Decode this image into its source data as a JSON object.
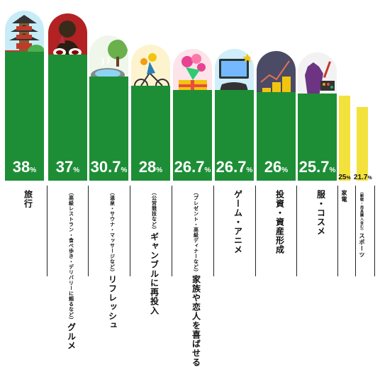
{
  "chart_data": {
    "type": "bar",
    "title": "",
    "xlabel": "",
    "ylabel": "",
    "ylim": [
      0,
      40
    ],
    "grid": false,
    "categories": [
      {
        "main": "旅行",
        "note": ""
      },
      {
        "main": "グルメ",
        "note": "（高級レストラン・食べ歩き・デリバリーに頼るなど）"
      },
      {
        "main": "リフレッシュ",
        "note": "（温泉・サウナ・マッサージなど）"
      },
      {
        "main": "ギャンブルに再投入",
        "note": "（公営競技など）"
      },
      {
        "main": "家族や恋人を喜ばせる",
        "note": "（プレゼント・高級ディナーなど）"
      },
      {
        "main": "ゲーム・アニメ",
        "note": ""
      },
      {
        "main": "投資・資産形成",
        "note": ""
      },
      {
        "main": "服・コスメ",
        "note": ""
      },
      {
        "main": "家電",
        "note": ""
      },
      {
        "main": "スポーツ",
        "note": "（観戦・用具購入含む）"
      }
    ],
    "values": [
      38,
      37,
      30.7,
      28,
      26.7,
      26.7,
      26,
      25.7,
      25,
      21.7
    ],
    "labels": [
      "38",
      "37",
      "30.7",
      "28",
      "26.7",
      "26.7",
      "26",
      "25.7",
      "25",
      "21.7"
    ],
    "unit": "%",
    "colors": {
      "main_bar": "#1d8e36",
      "minor_bar": "#f2e23b",
      "arch_backgrounds": [
        "#c8ecf7",
        "#b22222",
        "#eef7ea",
        "#fdf3cf",
        "#fde3ea",
        "#cfeef9",
        "#4b4b66",
        "#f2f2f2"
      ]
    },
    "icons": [
      "pagoda-torii-icon",
      "wine-dining-icon",
      "hot-spring-icon",
      "cycling-race-icon",
      "gift-bouquet-icon",
      "game-controller-icon",
      "coins-growth-icon",
      "fashion-cosmetics-icon"
    ]
  }
}
